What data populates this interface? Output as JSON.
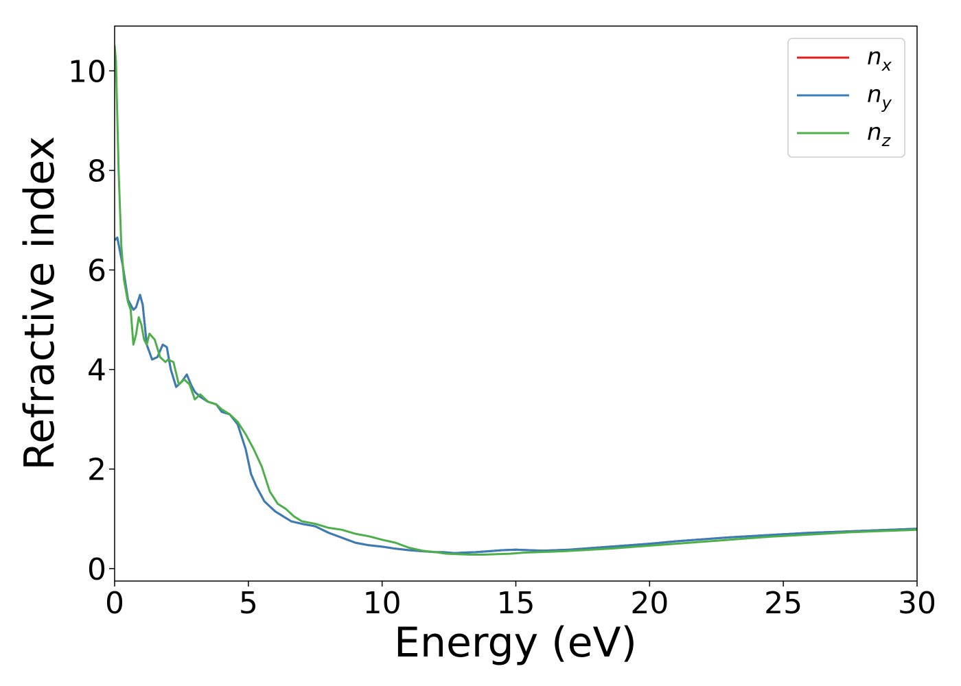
{
  "chart_data": {
    "type": "line",
    "xlabel": "Energy (eV)",
    "ylabel": "Refractive index",
    "xlim": [
      0,
      30
    ],
    "ylim": [
      -0.25,
      10.9
    ],
    "xticks": [
      0,
      5,
      10,
      15,
      20,
      25,
      30
    ],
    "yticks": [
      0,
      2,
      4,
      6,
      8,
      10
    ],
    "legend_position": "top-right",
    "grid": false,
    "series": [
      {
        "name": "n_x",
        "label_base": "n",
        "label_sub": "x",
        "color": "#e41a1c",
        "x": [
          0,
          0.1,
          0.3,
          0.5,
          0.7,
          0.8,
          0.95,
          1.05,
          1.2,
          1.4,
          1.6,
          1.8,
          1.95,
          2.1,
          2.3,
          2.5,
          2.7,
          2.85,
          3.0,
          3.2,
          3.5,
          3.8,
          4.0,
          4.3,
          4.6,
          4.9,
          5.1,
          5.3,
          5.6,
          5.8,
          6.0,
          6.3,
          6.6,
          7.0,
          7.5,
          8.0,
          8.5,
          9.0,
          9.5,
          10.0,
          10.5,
          11.0,
          11.5,
          12.0,
          12.3,
          12.7,
          13.0,
          13.5,
          14.0,
          14.5,
          15.0,
          15.5,
          16.0,
          16.5,
          17.0,
          18.0,
          19.0,
          20.0,
          21.0,
          22.0,
          23.0,
          24.0,
          25.0,
          26.0,
          27.0,
          28.0,
          29.0,
          30.0
        ],
        "y": [
          6.6,
          6.65,
          6.1,
          5.4,
          5.2,
          5.25,
          5.5,
          5.3,
          4.5,
          4.2,
          4.25,
          4.5,
          4.45,
          4.0,
          3.65,
          3.75,
          3.9,
          3.7,
          3.55,
          3.45,
          3.35,
          3.3,
          3.15,
          3.1,
          2.9,
          2.4,
          1.9,
          1.65,
          1.35,
          1.25,
          1.15,
          1.05,
          0.95,
          0.9,
          0.85,
          0.72,
          0.62,
          0.52,
          0.47,
          0.44,
          0.4,
          0.37,
          0.35,
          0.33,
          0.33,
          0.31,
          0.32,
          0.33,
          0.35,
          0.37,
          0.38,
          0.37,
          0.36,
          0.37,
          0.38,
          0.42,
          0.46,
          0.5,
          0.55,
          0.59,
          0.63,
          0.66,
          0.69,
          0.72,
          0.74,
          0.76,
          0.78,
          0.8
        ]
      },
      {
        "name": "n_y",
        "label_base": "n",
        "label_sub": "y",
        "color": "#377eb8",
        "x": [
          0,
          0.1,
          0.3,
          0.5,
          0.7,
          0.8,
          0.95,
          1.05,
          1.2,
          1.4,
          1.6,
          1.8,
          1.95,
          2.1,
          2.3,
          2.5,
          2.7,
          2.85,
          3.0,
          3.2,
          3.5,
          3.8,
          4.0,
          4.3,
          4.6,
          4.9,
          5.1,
          5.3,
          5.6,
          5.8,
          6.0,
          6.3,
          6.6,
          7.0,
          7.5,
          8.0,
          8.5,
          9.0,
          9.5,
          10.0,
          10.5,
          11.0,
          11.5,
          12.0,
          12.3,
          12.7,
          13.0,
          13.5,
          14.0,
          14.5,
          15.0,
          15.5,
          16.0,
          16.5,
          17.0,
          18.0,
          19.0,
          20.0,
          21.0,
          22.0,
          23.0,
          24.0,
          25.0,
          26.0,
          27.0,
          28.0,
          29.0,
          30.0
        ],
        "y": [
          6.6,
          6.65,
          6.1,
          5.4,
          5.2,
          5.25,
          5.5,
          5.3,
          4.5,
          4.2,
          4.25,
          4.5,
          4.45,
          4.0,
          3.65,
          3.75,
          3.9,
          3.7,
          3.55,
          3.45,
          3.35,
          3.3,
          3.15,
          3.1,
          2.9,
          2.4,
          1.9,
          1.65,
          1.35,
          1.25,
          1.15,
          1.05,
          0.95,
          0.9,
          0.85,
          0.72,
          0.62,
          0.52,
          0.47,
          0.44,
          0.4,
          0.37,
          0.35,
          0.33,
          0.33,
          0.31,
          0.32,
          0.33,
          0.35,
          0.37,
          0.38,
          0.37,
          0.36,
          0.37,
          0.38,
          0.42,
          0.46,
          0.5,
          0.55,
          0.59,
          0.63,
          0.66,
          0.69,
          0.72,
          0.74,
          0.76,
          0.78,
          0.8
        ]
      },
      {
        "name": "n_z",
        "label_base": "n",
        "label_sub": "z",
        "color": "#4daf4a",
        "x": [
          0,
          0.05,
          0.15,
          0.25,
          0.35,
          0.5,
          0.6,
          0.7,
          0.8,
          0.9,
          1.0,
          1.1,
          1.2,
          1.3,
          1.5,
          1.7,
          1.9,
          2.0,
          2.2,
          2.4,
          2.6,
          2.8,
          3.0,
          3.2,
          3.5,
          3.8,
          4.0,
          4.3,
          4.6,
          4.9,
          5.2,
          5.5,
          5.8,
          6.1,
          6.4,
          6.7,
          7.0,
          7.5,
          8.0,
          8.5,
          9.0,
          9.5,
          10.0,
          10.5,
          11.0,
          11.5,
          12.0,
          12.4,
          12.8,
          13.3,
          13.8,
          14.3,
          14.8,
          15.3,
          15.8,
          16.3,
          16.8,
          17.5,
          18.5,
          19.5,
          20.5,
          21.5,
          22.5,
          23.5,
          24.5,
          25.5,
          26.5,
          27.5,
          28.5,
          29.5,
          30.0
        ],
        "y": [
          10.5,
          10.2,
          8.0,
          6.5,
          5.8,
          5.35,
          5.2,
          4.5,
          4.7,
          5.05,
          4.9,
          4.6,
          4.5,
          4.72,
          4.6,
          4.25,
          4.15,
          4.2,
          4.15,
          3.7,
          3.8,
          3.7,
          3.4,
          3.5,
          3.35,
          3.3,
          3.2,
          3.1,
          2.95,
          2.7,
          2.4,
          2.05,
          1.55,
          1.3,
          1.2,
          1.05,
          0.95,
          0.9,
          0.82,
          0.78,
          0.7,
          0.65,
          0.58,
          0.52,
          0.42,
          0.36,
          0.33,
          0.3,
          0.29,
          0.28,
          0.28,
          0.29,
          0.3,
          0.32,
          0.33,
          0.34,
          0.35,
          0.37,
          0.4,
          0.44,
          0.48,
          0.52,
          0.56,
          0.6,
          0.64,
          0.67,
          0.7,
          0.73,
          0.75,
          0.77,
          0.78
        ]
      }
    ]
  }
}
